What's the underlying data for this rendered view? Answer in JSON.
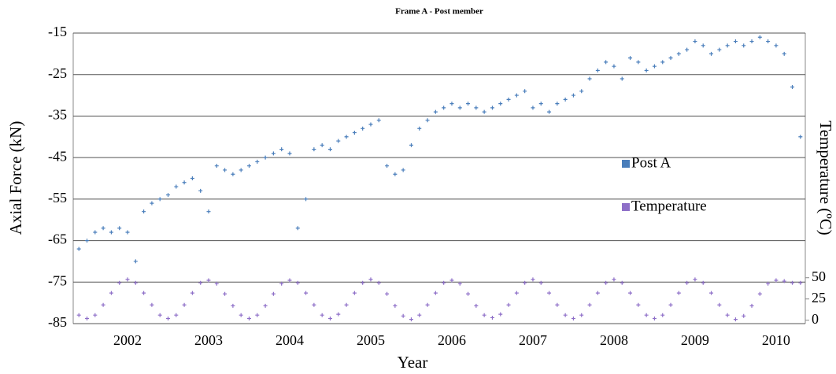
{
  "chart_data": {
    "type": "scatter",
    "title": "Frame A - Post member",
    "x_label": "Year",
    "y_label": "Axial Force (kN)",
    "y2_label": "Temperature (ºC)",
    "x": [
      2001.4,
      2001.5,
      2001.6,
      2001.7,
      2001.8,
      2001.9,
      2002.0,
      2002.1,
      2002.2,
      2002.3,
      2002.4,
      2002.5,
      2002.6,
      2002.7,
      2002.8,
      2002.9,
      2003.0,
      2003.1,
      2003.2,
      2003.3,
      2003.4,
      2003.5,
      2003.6,
      2003.7,
      2003.8,
      2003.9,
      2004.0,
      2004.1,
      2004.2,
      2004.3,
      2004.4,
      2004.5,
      2004.6,
      2004.7,
      2004.8,
      2004.9,
      2005.0,
      2005.1,
      2005.2,
      2005.3,
      2005.4,
      2005.5,
      2005.6,
      2005.7,
      2005.8,
      2005.9,
      2006.0,
      2006.1,
      2006.2,
      2006.3,
      2006.4,
      2006.5,
      2006.6,
      2006.7,
      2006.8,
      2006.9,
      2007.0,
      2007.1,
      2007.2,
      2007.3,
      2007.4,
      2007.5,
      2007.6,
      2007.7,
      2007.8,
      2007.9,
      2008.0,
      2008.1,
      2008.2,
      2008.3,
      2008.4,
      2008.5,
      2008.6,
      2008.7,
      2008.8,
      2008.9,
      2009.0,
      2009.1,
      2009.2,
      2009.3,
      2009.4,
      2009.5,
      2009.6,
      2009.7,
      2009.8,
      2009.9,
      2010.0,
      2010.1,
      2010.2,
      2010.3
    ],
    "series": [
      {
        "name": "Post A",
        "color": "#4a7ebb",
        "axis": "y",
        "values": [
          -67,
          -65,
          -63,
          -62,
          -63,
          -62,
          -63,
          -70,
          -58,
          -56,
          -55,
          -54,
          -52,
          -51,
          -50,
          -53,
          -58,
          -47,
          -48,
          -49,
          -48,
          -47,
          -46,
          -45,
          -44,
          -43,
          -44,
          -62,
          -55,
          -43,
          -42,
          -43,
          -41,
          -40,
          -39,
          -38,
          -37,
          -36,
          -47,
          -49,
          -48,
          -42,
          -38,
          -36,
          -34,
          -33,
          -32,
          -33,
          -32,
          -33,
          -34,
          -33,
          -32,
          -31,
          -30,
          -29,
          -33,
          -32,
          -34,
          -32,
          -31,
          -30,
          -29,
          -26,
          -24,
          -22,
          -23,
          -26,
          -21,
          -22,
          -24,
          -23,
          -22,
          -21,
          -20,
          -19,
          -17,
          -18,
          -20,
          -19,
          -18,
          -17,
          -18,
          -17,
          -16,
          -17,
          -18,
          -20,
          -28,
          -40
        ]
      },
      {
        "name": "Temperature",
        "color": "#8e6fc8",
        "axis": "y2",
        "values": [
          6,
          2,
          6,
          18,
          32,
          44,
          48,
          44,
          32,
          18,
          6,
          2,
          6,
          18,
          32,
          44,
          47,
          43,
          31,
          17,
          6,
          2,
          6,
          17,
          31,
          43,
          47,
          44,
          32,
          18,
          6,
          2,
          7,
          18,
          32,
          44,
          48,
          44,
          31,
          17,
          5,
          1,
          6,
          18,
          32,
          44,
          47,
          43,
          31,
          17,
          6,
          3,
          7,
          18,
          32,
          44,
          48,
          44,
          32,
          18,
          6,
          2,
          6,
          18,
          32,
          44,
          48,
          44,
          32,
          18,
          6,
          2,
          6,
          18,
          32,
          44,
          48,
          44,
          32,
          18,
          6,
          1,
          5,
          17,
          31,
          43,
          47,
          46,
          44,
          44
        ]
      }
    ],
    "xlim": [
      2001.33,
      2010.36
    ],
    "xticks": [
      2002,
      2003,
      2004,
      2005,
      2006,
      2007,
      2008,
      2009,
      2010
    ],
    "ylim": [
      -85,
      -15
    ],
    "yticks": [
      -85,
      -75,
      -65,
      -55,
      -45,
      -35,
      -25,
      -15
    ],
    "y2lim": [
      -4,
      338
    ],
    "y2ticks": [
      0,
      25,
      50
    ],
    "grid": true
  }
}
